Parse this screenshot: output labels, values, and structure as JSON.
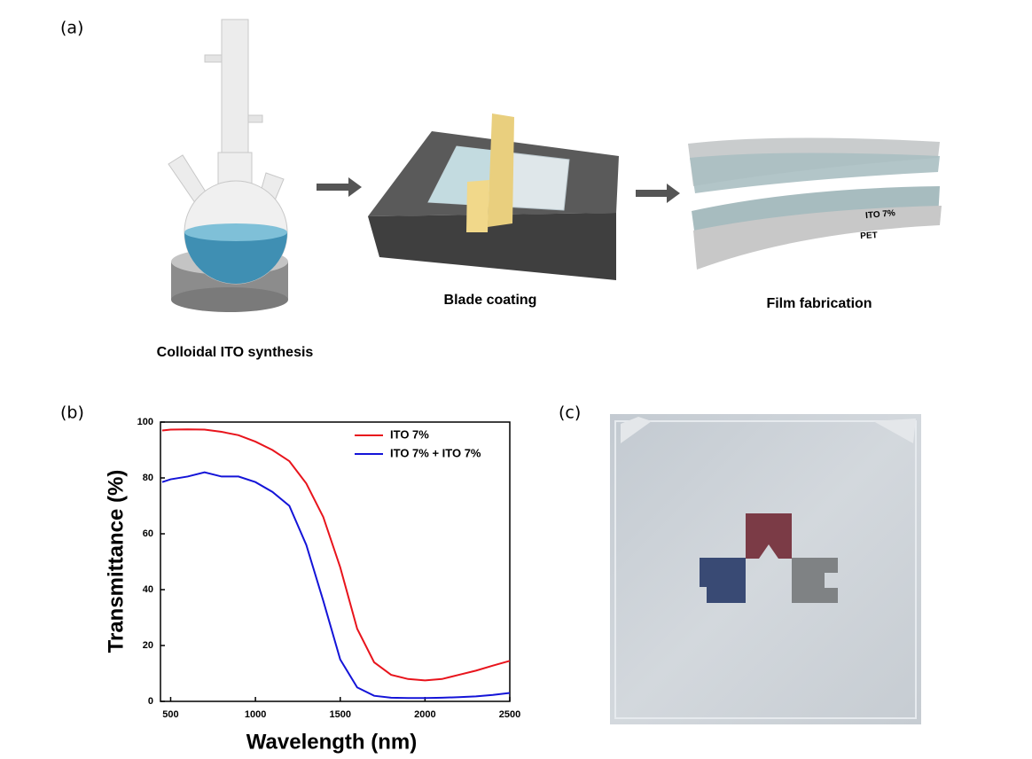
{
  "panel_a": {
    "label": "(a)",
    "steps": [
      "Colloidal ITO synthesis",
      "Blade coating",
      "Film fabrication"
    ],
    "film_layers": [
      "ITO 7%",
      "PET"
    ]
  },
  "chart_data": {
    "type": "line",
    "label": "(b)",
    "x_label": "Wavelength (nm)",
    "y_label": "Transmittance (%)",
    "x": [
      450,
      500,
      600,
      700,
      800,
      900,
      1000,
      1100,
      1200,
      1300,
      1400,
      1500,
      1600,
      1700,
      1800,
      1900,
      2000,
      2100,
      2200,
      2300,
      2400,
      2500
    ],
    "series": [
      {
        "name": "ITO 7%",
        "color": "#e8141c",
        "values": [
          97,
          97.3,
          97.4,
          97.3,
          96.5,
          95.3,
          93,
          90,
          86,
          78,
          66,
          48,
          26,
          14,
          9.5,
          8,
          7.5,
          8,
          9.5,
          11,
          12.8,
          14.5
        ]
      },
      {
        "name": "ITO 7% + ITO 7%",
        "color": "#1414d8",
        "values": [
          78.5,
          79.5,
          80.5,
          82,
          80.5,
          80.5,
          78.5,
          75,
          70,
          56,
          36,
          15,
          5,
          2,
          1.3,
          1.2,
          1.2,
          1.3,
          1.5,
          1.8,
          2.3,
          3
        ]
      }
    ],
    "xlim": [
      440,
      2500
    ],
    "ylim": [
      0,
      100
    ],
    "xticks": [
      500,
      1000,
      1500,
      2000,
      2500
    ],
    "yticks": [
      0,
      20,
      40,
      60,
      80,
      100
    ],
    "legend": "upper right"
  },
  "panel_c": {
    "label": "(c)"
  }
}
